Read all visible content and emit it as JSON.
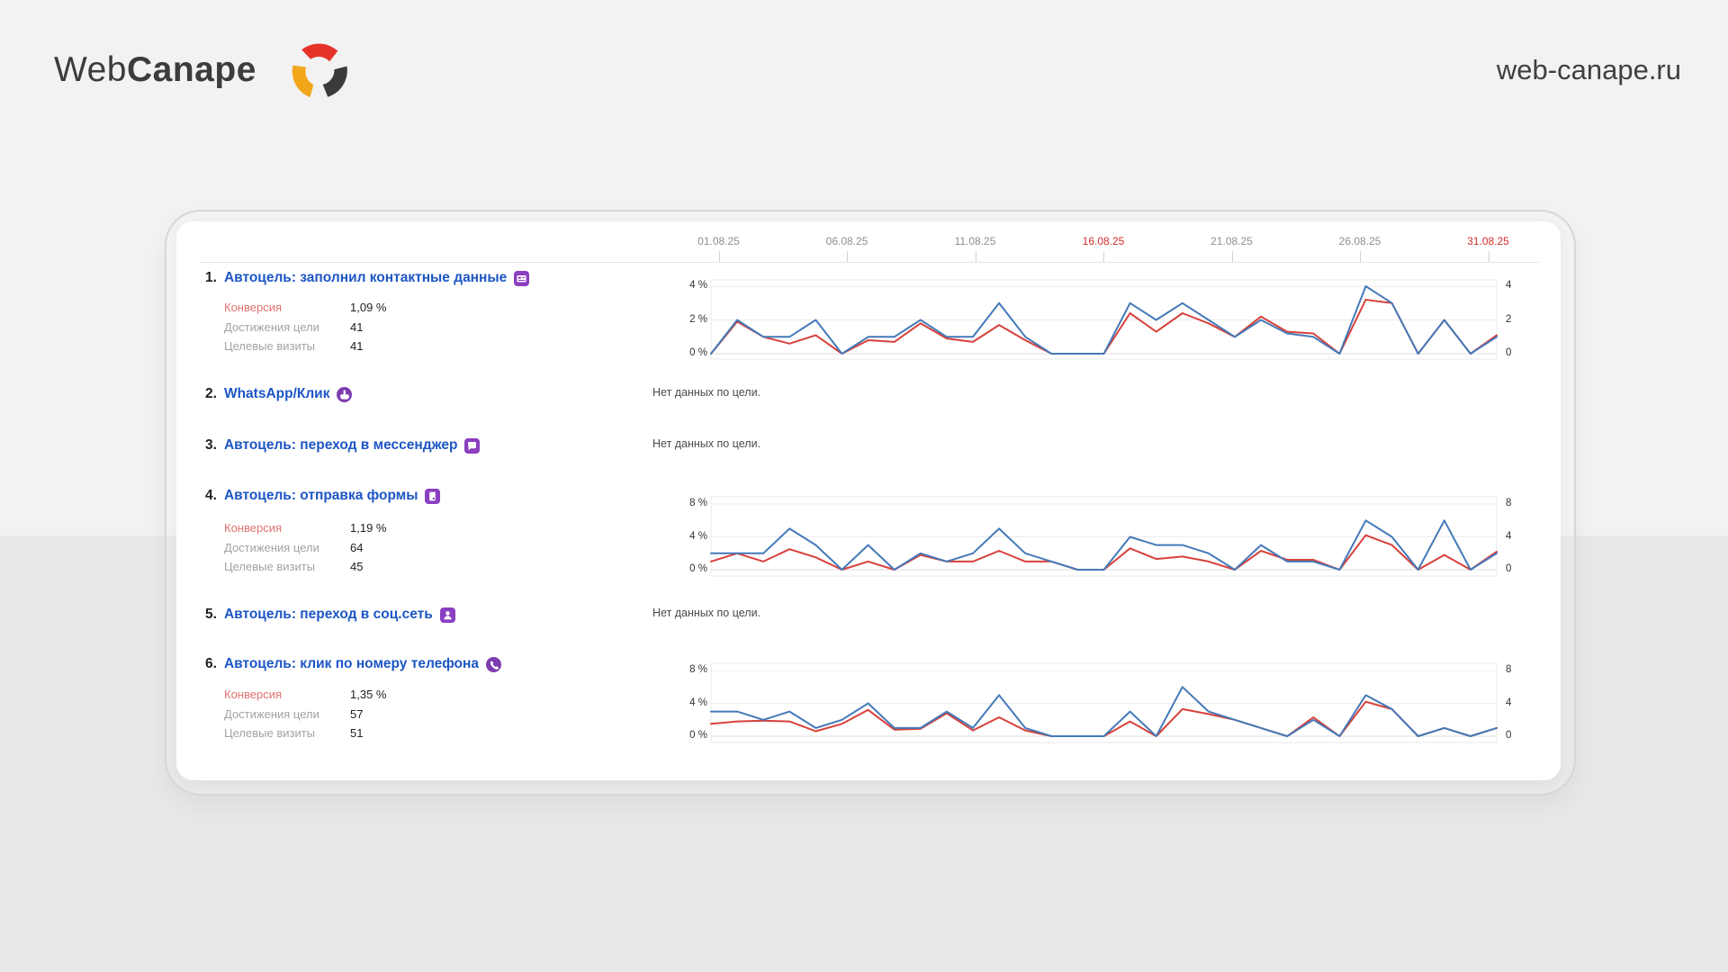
{
  "header": {
    "logo_text_1": "Web",
    "logo_text_2": "Canape",
    "site_url": "web-canape.ru"
  },
  "report": {
    "axis_dates": [
      {
        "label": "01.08.25",
        "weekend": false
      },
      {
        "label": "06.08.25",
        "weekend": false
      },
      {
        "label": "11.08.25",
        "weekend": false
      },
      {
        "label": "16.08.25",
        "weekend": true
      },
      {
        "label": "21.08.25",
        "weekend": false
      },
      {
        "label": "26.08.25",
        "weekend": false
      },
      {
        "label": "31.08.25",
        "weekend": true
      }
    ],
    "no_data_text": "Нет данных по цели.",
    "stat_labels": {
      "conversion": "Конверсия",
      "goal_reaches": "Достижения цели",
      "goal_visits": "Целевые визиты"
    },
    "goals": [
      {
        "num": "1.",
        "title": "Автоцель: заполнил контактные данные",
        "icon": "contact-card-icon",
        "stats": {
          "conversion": "1,09 %",
          "goal_reaches": "41",
          "goal_visits": "41"
        },
        "chart_index": 0
      },
      {
        "num": "2.",
        "title": "WhatsApp/Клик",
        "icon": "click-icon",
        "no_data": true
      },
      {
        "num": "3.",
        "title": "Автоцель: переход в мессенджер",
        "icon": "messenger-icon",
        "no_data": true
      },
      {
        "num": "4.",
        "title": "Автоцель: отправка формы",
        "icon": "form-icon",
        "stats": {
          "conversion": "1,19 %",
          "goal_reaches": "64",
          "goal_visits": "45"
        },
        "chart_index": 1
      },
      {
        "num": "5.",
        "title": "Автоцель: переход в соц.сеть",
        "icon": "person-icon",
        "no_data": true
      },
      {
        "num": "6.",
        "title": "Автоцель: клик по номеру телефона",
        "icon": "phone-icon",
        "stats": {
          "conversion": "1,35 %",
          "goal_reaches": "57",
          "goal_visits": "51"
        },
        "chart_index": 2
      }
    ]
  },
  "chart_data": [
    {
      "type": "line",
      "goal": "Автоцель: заполнил контактные данные",
      "x_range": [
        "01.08.25",
        "31.08.25"
      ],
      "x_points": 31,
      "ylim": [
        0,
        4
      ],
      "yticks": [
        0,
        2,
        4
      ],
      "yticks_left_labels": [
        "0 %",
        "2 %",
        "4 %"
      ],
      "yticks_right_labels": [
        "0",
        "2",
        "4"
      ],
      "grid": true,
      "series": [
        {
          "name": "blue",
          "color": "#4479b8",
          "values": [
            0,
            2,
            1,
            1,
            2,
            0,
            1,
            1,
            2,
            1,
            1,
            3,
            1,
            0,
            0,
            0,
            3,
            2,
            3,
            2,
            1,
            2,
            1.2,
            1,
            0,
            4,
            3,
            0,
            2,
            0,
            1
          ]
        },
        {
          "name": "red",
          "color": "#d7413b",
          "values": [
            0,
            1.9,
            1,
            0.6,
            1.1,
            0,
            0.8,
            0.7,
            1.8,
            0.9,
            0.7,
            1.7,
            0.8,
            0,
            0,
            0,
            2.4,
            1.3,
            2.4,
            1.8,
            1,
            2.2,
            1.3,
            1.2,
            0,
            3.2,
            3,
            0,
            2,
            0,
            1.1
          ]
        }
      ]
    },
    {
      "type": "line",
      "goal": "Автоцель: отправка формы",
      "x_range": [
        "01.08.25",
        "31.08.25"
      ],
      "x_points": 31,
      "ylim": [
        0,
        8
      ],
      "yticks": [
        0,
        4,
        8
      ],
      "yticks_left_labels": [
        "0 %",
        "4 %",
        "8 %"
      ],
      "yticks_right_labels": [
        "0",
        "4",
        "8"
      ],
      "grid": true,
      "series": [
        {
          "name": "blue",
          "color": "#4479b8",
          "values": [
            2,
            2,
            2,
            5,
            3,
            0,
            3,
            0,
            2,
            1,
            2,
            5,
            2,
            1,
            0,
            0,
            4,
            3,
            3,
            2,
            0,
            3,
            1,
            1,
            0,
            6,
            4,
            0,
            6,
            0,
            2
          ]
        },
        {
          "name": "red",
          "color": "#d7413b",
          "values": [
            1,
            2,
            1,
            2.5,
            1.5,
            0,
            1,
            0,
            1.8,
            1,
            1,
            2.3,
            1,
            1,
            0,
            0,
            2.6,
            1.3,
            1.6,
            1,
            0,
            2.3,
            1.2,
            1.2,
            0,
            4.2,
            3,
            0,
            1.8,
            0,
            2.2
          ]
        }
      ]
    },
    {
      "type": "line",
      "goal": "Автоцель: клик по номеру телефона",
      "x_range": [
        "01.08.25",
        "31.08.25"
      ],
      "x_points": 31,
      "ylim": [
        0,
        8
      ],
      "yticks": [
        0,
        4,
        8
      ],
      "yticks_left_labels": [
        "0 %",
        "4 %",
        "8 %"
      ],
      "yticks_right_labels": [
        "0",
        "4",
        "8"
      ],
      "grid": true,
      "series": [
        {
          "name": "blue",
          "color": "#4479b8",
          "values": [
            3,
            3,
            2,
            3,
            1,
            2,
            4,
            1,
            1,
            3,
            1,
            5,
            1,
            0,
            0,
            0,
            3,
            0,
            6,
            3,
            2,
            1,
            0,
            2,
            0,
            5,
            3.3,
            0,
            1,
            0,
            1
          ]
        },
        {
          "name": "red",
          "color": "#d7413b",
          "values": [
            1.5,
            1.8,
            1.9,
            1.8,
            0.6,
            1.5,
            3.2,
            0.8,
            0.9,
            2.8,
            0.7,
            2.3,
            0.7,
            0,
            0,
            0,
            1.8,
            0,
            3.3,
            2.7,
            2,
            1,
            0,
            2.3,
            0,
            4.2,
            3.3,
            0,
            1,
            0,
            1
          ]
        }
      ]
    }
  ],
  "colors": {
    "line_blue": "#4479b8",
    "line_red": "#d7413b",
    "goal_link_blue": "#1d56c5",
    "icon_purple_square": "#8b3fc1",
    "icon_purple_circle": "#7d3caf",
    "weekend_date_red": "#d22e2c",
    "conversion_label_red": "#e0716e",
    "logo_red": "#e5332a",
    "logo_dark": "#3a3a3c",
    "logo_orange": "#f2a71b"
  }
}
